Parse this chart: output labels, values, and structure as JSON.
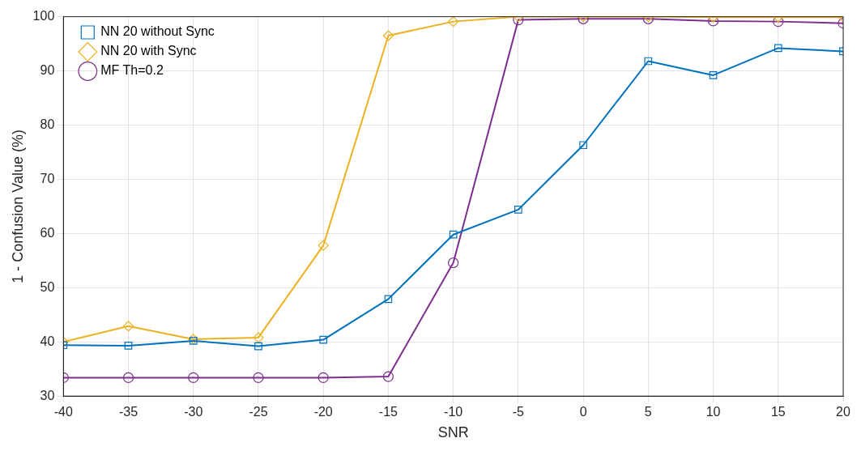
{
  "chart_data": {
    "type": "line",
    "xlabel": "SNR",
    "ylabel": "1 - Confusion Value (%)",
    "x": [
      -40,
      -35,
      -30,
      -25,
      -20,
      -15,
      -10,
      -5,
      0,
      5,
      10,
      15,
      20
    ],
    "xlim": [
      -40,
      20
    ],
    "xticks": [
      -40,
      -35,
      -30,
      -25,
      -20,
      -15,
      -10,
      -5,
      0,
      5,
      10,
      15,
      20
    ],
    "ylim": [
      30,
      100
    ],
    "yticks": [
      30,
      40,
      50,
      60,
      70,
      80,
      90,
      100
    ],
    "grid": true,
    "legend": "top left",
    "series": [
      {
        "name": "NN 20 without Sync",
        "color": "#0072bd",
        "marker": "square",
        "values": [
          39.4,
          39.3,
          40.2,
          39.2,
          40.4,
          47.9,
          59.8,
          64.4,
          76.3,
          91.8,
          89.2,
          94.2,
          93.6
        ]
      },
      {
        "name": "NN 20 with Sync",
        "color": "#edb120",
        "marker": "diamond",
        "values": [
          40.0,
          42.9,
          40.5,
          40.8,
          57.8,
          96.5,
          99.1,
          100,
          100,
          100,
          99.9,
          99.9,
          99.9
        ]
      },
      {
        "name": "MF Th=0.2",
        "color": "#7e2f8e",
        "marker": "circle",
        "values": [
          33.4,
          33.4,
          33.4,
          33.4,
          33.4,
          33.6,
          54.6,
          99.4,
          99.6,
          99.6,
          99.2,
          99.1,
          98.8
        ]
      }
    ]
  }
}
